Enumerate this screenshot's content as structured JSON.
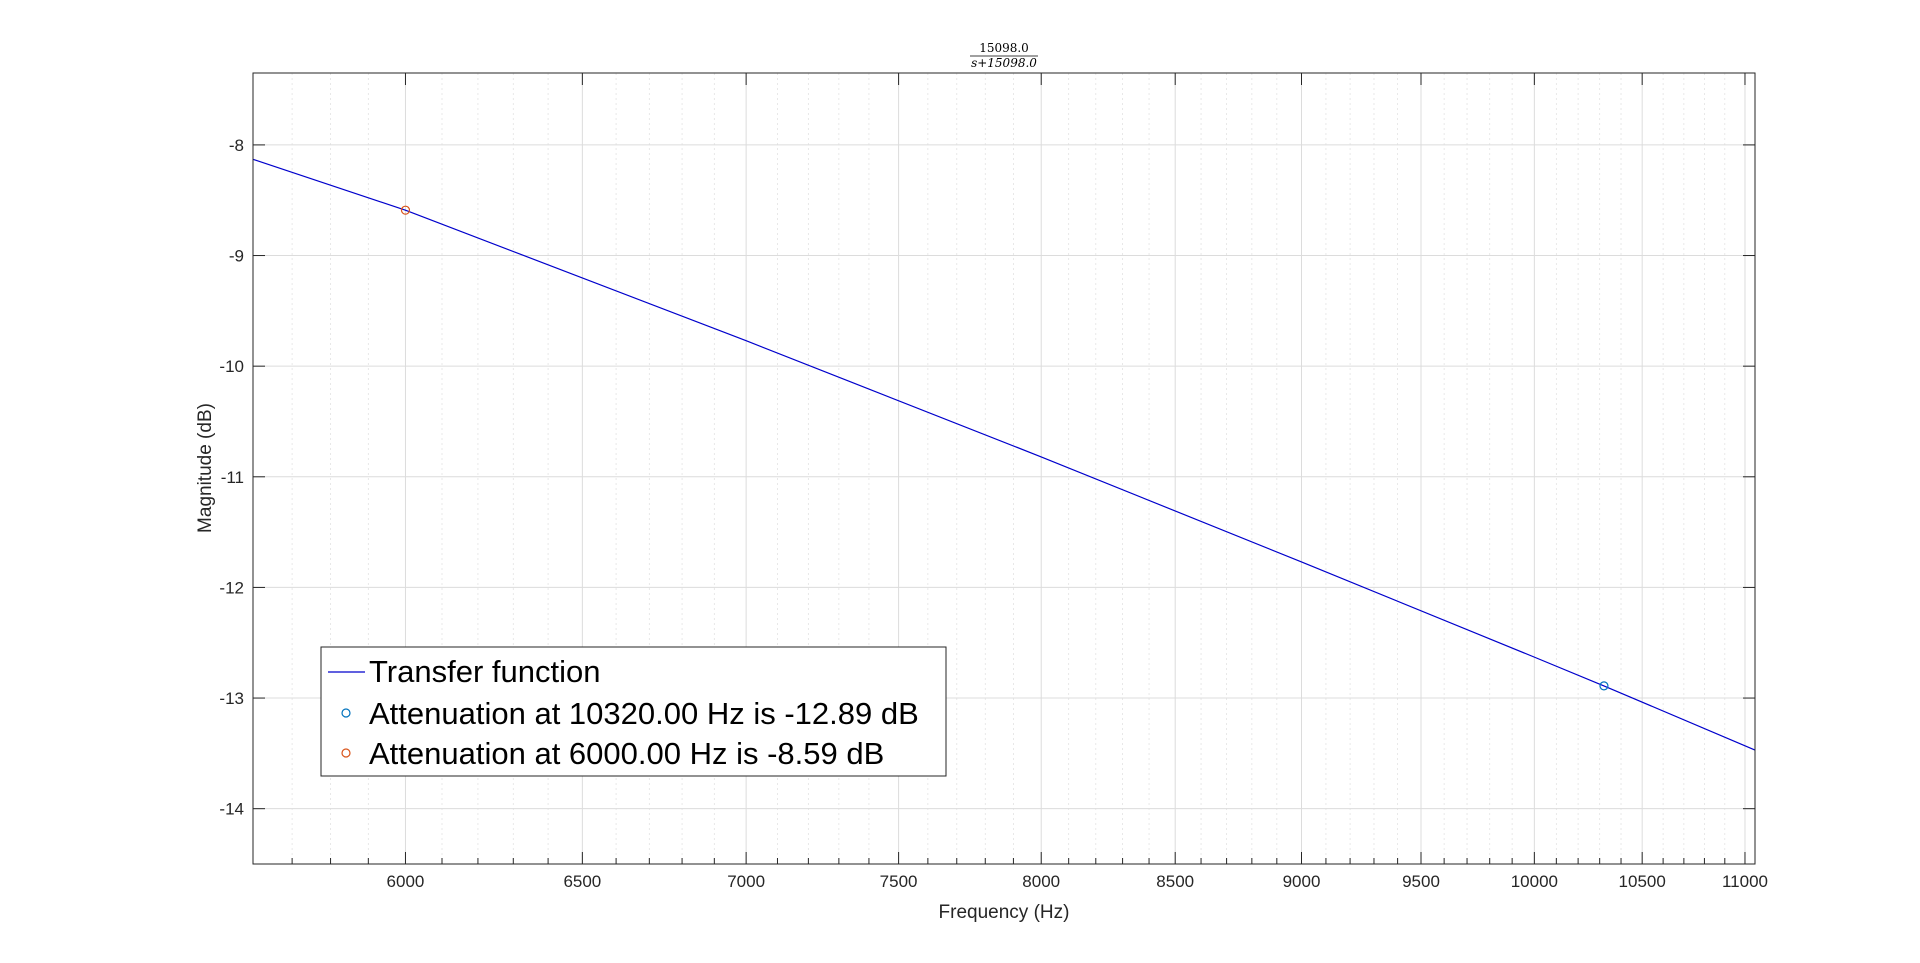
{
  "chart_data": {
    "type": "line",
    "title": {
      "numerator": "15098.0",
      "denominator": "s+15098.0"
    },
    "xlabel": "Frequency (Hz)",
    "ylabel": "Magnitude (dB)",
    "xlim": [
      5600,
      11050
    ],
    "ylim": [
      -14.5,
      -7.35
    ],
    "xscale": "log",
    "grid": true,
    "x_ticks": [
      6000,
      6500,
      7000,
      7500,
      8000,
      8500,
      9000,
      9500,
      10000,
      10500,
      11000
    ],
    "x_tick_labels": [
      "6000",
      "6500",
      "7000",
      "7500",
      "8000",
      "8500",
      "9000",
      "9500",
      "10000",
      "10500",
      "11000"
    ],
    "y_ticks": [
      -14,
      -13,
      -12,
      -11,
      -10,
      -9,
      -8
    ],
    "y_tick_labels": [
      "-14",
      "-13",
      "-12",
      "-11",
      "-10",
      "-9",
      "-8"
    ],
    "series": [
      {
        "name": "Transfer function",
        "kind": "line",
        "color": "#0000cc",
        "x": [
          5600,
          6000,
          7000,
          8000,
          9000,
          10000,
          10320,
          11050
        ],
        "y": [
          -8.13,
          -8.59,
          -9.77,
          -10.82,
          -11.77,
          -12.63,
          -12.89,
          -13.47
        ]
      },
      {
        "name": "Attenuation at 10320.00 Hz is -12.89 dB",
        "kind": "marker",
        "color": "#0072bd",
        "x": [
          10320
        ],
        "y": [
          -12.89
        ]
      },
      {
        "name": "Attenuation at 6000.00 Hz is -8.59 dB",
        "kind": "marker",
        "color": "#d95319",
        "x": [
          6000
        ],
        "y": [
          -8.59
        ]
      }
    ],
    "legend_position": "bottom-left"
  }
}
